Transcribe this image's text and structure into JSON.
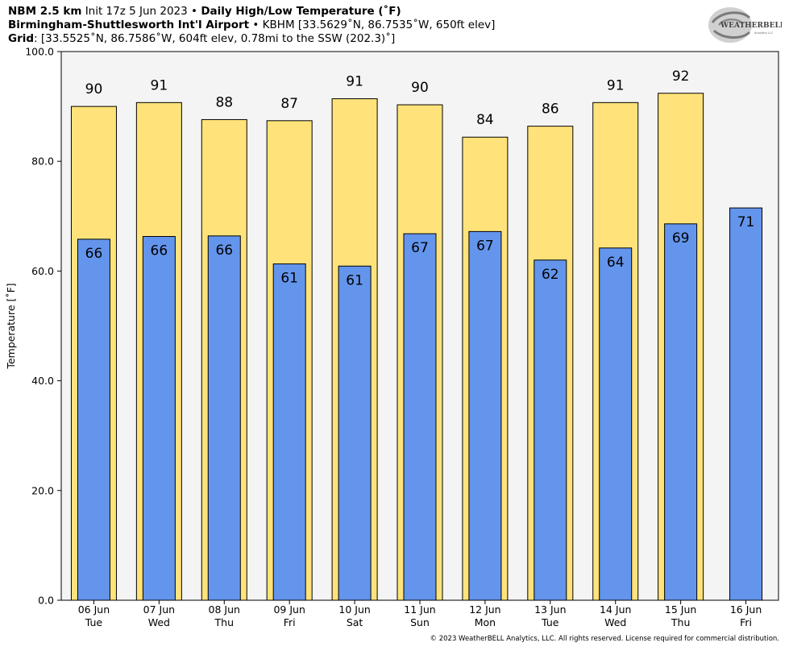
{
  "header": {
    "model": "NBM 2.5 km",
    "init": "Init 17z 5 Jun 2023",
    "bullet": "•",
    "product": "Daily High/Low Temperature (˚F)",
    "station_name": "Birmingham-Shuttlesworth Int'l Airport",
    "station_info": "KBHM [33.5629˚N, 86.7535˚W, 650ft elev]",
    "grid_label": "Grid",
    "grid_info": ": [33.5525˚N, 86.7586˚W, 604ft elev, 0.78mi to the SSW (202.3)˚]"
  },
  "logo": {
    "text_main": "WEATHERBELL",
    "text_sub": "Analytics LLC"
  },
  "footer": "© 2023 WeatherBELL Analytics, LLC. All rights reserved. License required for commercial distribution.",
  "colors": {
    "high": "#ffe37a",
    "low": "#6495ed",
    "plot_bg": "#f4f4f4"
  },
  "chart_data": {
    "type": "bar",
    "ylabel": "Temperature [˚F]",
    "ylim": [
      0,
      100
    ],
    "yticks": [
      "0.0",
      "20.0",
      "40.0",
      "60.0",
      "80.0",
      "100.0"
    ],
    "categories": [
      "06 Jun",
      "07 Jun",
      "08 Jun",
      "09 Jun",
      "10 Jun",
      "11 Jun",
      "12 Jun",
      "13 Jun",
      "14 Jun",
      "15 Jun",
      "16 Jun"
    ],
    "weekdays": [
      "Tue",
      "Wed",
      "Thu",
      "Fri",
      "Sat",
      "Sun",
      "Mon",
      "Tue",
      "Wed",
      "Thu",
      "Fri"
    ],
    "series": [
      {
        "name": "High",
        "values": [
          90,
          90.7,
          87.6,
          87.4,
          91.4,
          90.3,
          84.4,
          86.4,
          90.7,
          92.4,
          null
        ],
        "labels": [
          "90",
          "91",
          "88",
          "87",
          "91",
          "90",
          "84",
          "86",
          "91",
          "92",
          ""
        ]
      },
      {
        "name": "Low",
        "values": [
          65.8,
          66.3,
          66.4,
          61.3,
          60.9,
          66.8,
          67.2,
          62,
          64.2,
          68.6,
          71.5
        ],
        "labels": [
          "66",
          "66",
          "66",
          "61",
          "61",
          "67",
          "67",
          "62",
          "64",
          "69",
          "71"
        ]
      }
    ]
  }
}
